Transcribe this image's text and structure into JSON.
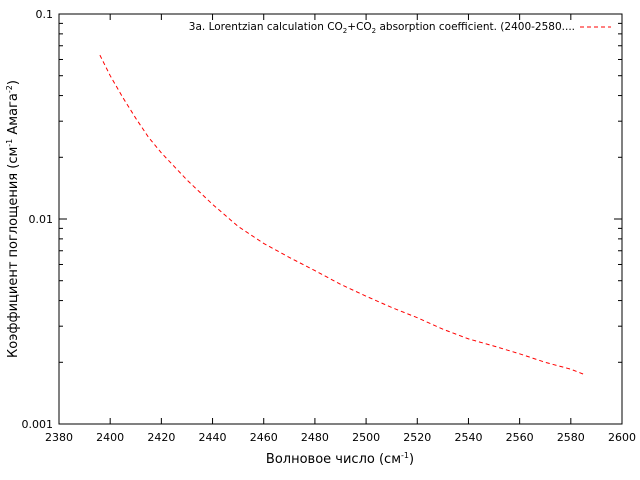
{
  "chart_data": {
    "type": "line",
    "title": "",
    "xlabel": "Волновое число (см",
    "xlabel_sup": "-1",
    "xlabel_end": ")",
    "ylabel": "Коэффициент поглощения (см",
    "ylabel_sup1": "-1",
    "ylabel_mid": " Амага",
    "ylabel_sup2": "-2",
    "ylabel_end": ")",
    "xlim": [
      2380,
      2600
    ],
    "ylim": [
      0.001,
      0.1
    ],
    "yscale": "log",
    "x_ticks": [
      2380,
      2400,
      2420,
      2440,
      2460,
      2480,
      2500,
      2520,
      2540,
      2560,
      2580,
      2600
    ],
    "x_tick_labels": [
      "2380",
      "2400",
      "2420",
      "2440",
      "2460",
      "2480",
      "2500",
      "2520",
      "2540",
      "2560",
      "2580",
      "2600"
    ],
    "y_ticks": [
      0.001,
      0.01,
      0.1
    ],
    "y_tick_labels": [
      "0.001",
      "0.01",
      "0.1"
    ],
    "grid": false,
    "legend_position": "top-right",
    "legend": {
      "parts": [
        "3a. Lorentzian calculation CO",
        "2",
        "+CO",
        "2",
        " absorption coefficient. (2400-2580...."
      ]
    },
    "series": [
      {
        "name": "3a. Lorentzian calculation CO2+CO2 absorption coefficient. (2400-2580....",
        "color": "#ff0000",
        "dash": "dashed",
        "x": [
          2396,
          2400,
          2405,
          2410,
          2415,
          2420,
          2430,
          2440,
          2450,
          2460,
          2470,
          2480,
          2490,
          2500,
          2510,
          2520,
          2530,
          2540,
          2550,
          2560,
          2570,
          2580,
          2585
        ],
        "y": [
          0.063,
          0.05,
          0.039,
          0.031,
          0.025,
          0.021,
          0.0155,
          0.0118,
          0.0092,
          0.0076,
          0.0065,
          0.0056,
          0.0048,
          0.0042,
          0.0037,
          0.0033,
          0.0029,
          0.0026,
          0.0024,
          0.0022,
          0.002,
          0.00185,
          0.00175
        ]
      }
    ]
  }
}
